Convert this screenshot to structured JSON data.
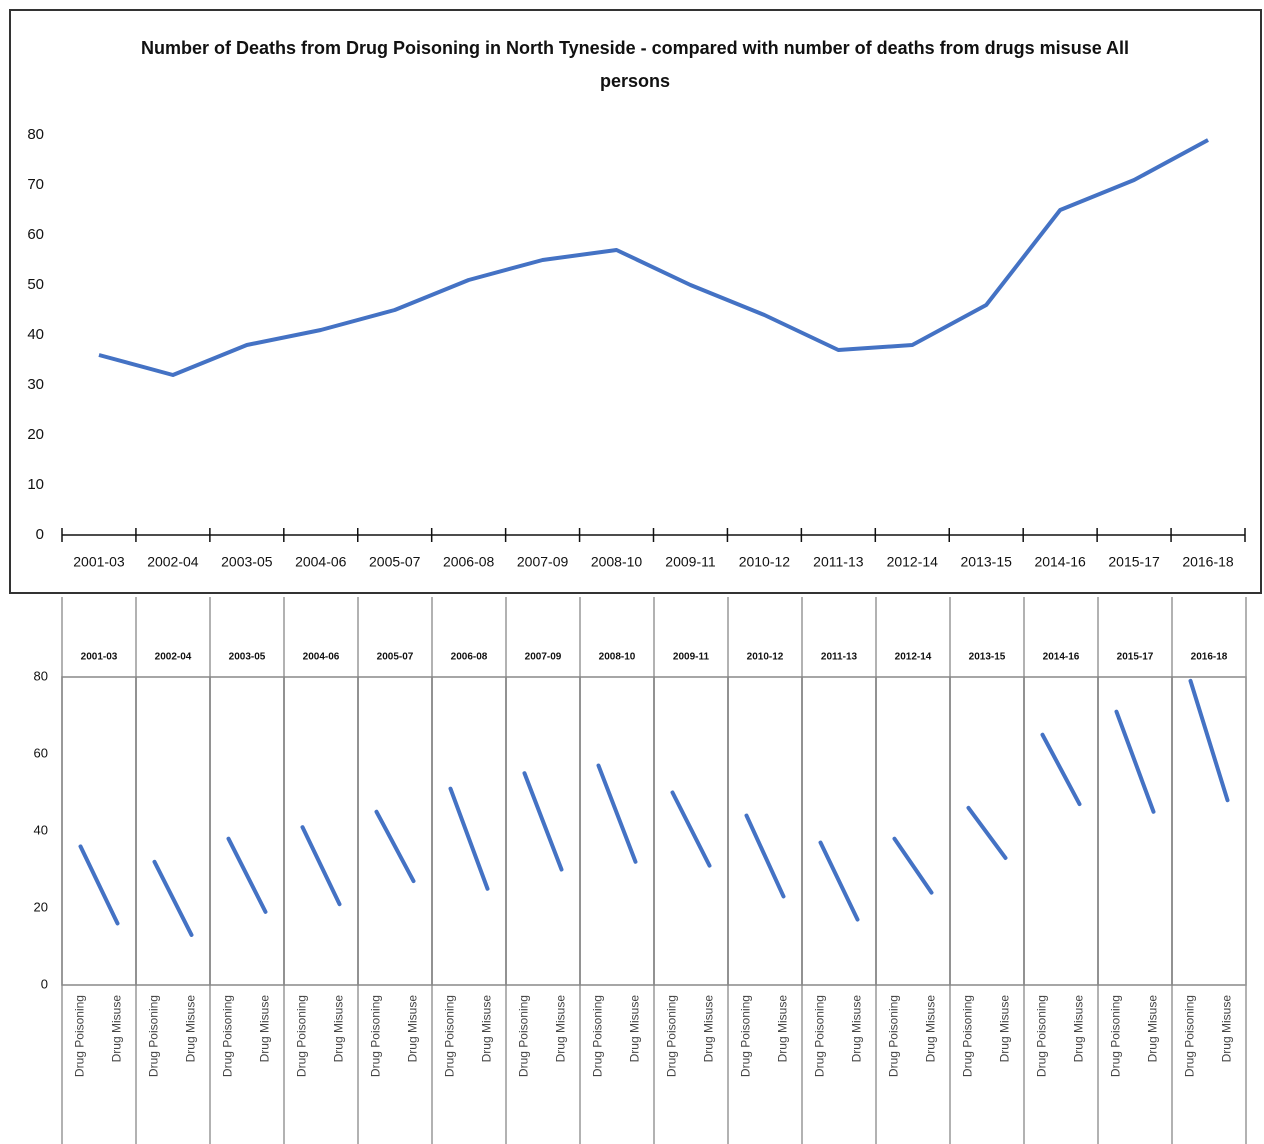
{
  "chart_data": [
    {
      "type": "line",
      "title": "Number of Deaths from Drug Poisoning in North Tyneside - compared with number of deaths from drugs misuse All persons",
      "categories": [
        "2001-03",
        "2002-04",
        "2003-05",
        "2004-06",
        "2005-07",
        "2006-08",
        "2007-09",
        "2008-10",
        "2009-11",
        "2010-12",
        "2011-13",
        "2012-14",
        "2013-15",
        "2014-16",
        "2015-17",
        "2016-18"
      ],
      "values": [
        36,
        32,
        38,
        41,
        45,
        51,
        55,
        57,
        50,
        44,
        37,
        38,
        46,
        65,
        71,
        79
      ],
      "color": "#4472c4",
      "ylim": [
        0,
        80
      ],
      "yticks": [
        0,
        10,
        20,
        30,
        40,
        50,
        60,
        70,
        80
      ]
    },
    {
      "type": "panel-line",
      "categories": [
        "Drug Poisoning",
        "Drug Misuse"
      ],
      "panels": [
        {
          "title": "2001-03",
          "values": [
            36,
            16
          ]
        },
        {
          "title": "2002-04",
          "values": [
            32,
            13
          ]
        },
        {
          "title": "2003-05",
          "values": [
            38,
            19
          ]
        },
        {
          "title": "2004-06",
          "values": [
            41,
            21
          ]
        },
        {
          "title": "2005-07",
          "values": [
            45,
            27
          ]
        },
        {
          "title": "2006-08",
          "values": [
            51,
            25
          ]
        },
        {
          "title": "2007-09",
          "values": [
            55,
            30
          ]
        },
        {
          "title": "2008-10",
          "values": [
            57,
            32
          ]
        },
        {
          "title": "2009-11",
          "values": [
            50,
            31
          ]
        },
        {
          "title": "2010-12",
          "values": [
            44,
            23
          ]
        },
        {
          "title": "2011-13",
          "values": [
            37,
            17
          ]
        },
        {
          "title": "2012-14",
          "values": [
            38,
            24
          ]
        },
        {
          "title": "2013-15",
          "values": [
            46,
            33
          ]
        },
        {
          "title": "2014-16",
          "values": [
            65,
            47
          ]
        },
        {
          "title": "2015-17",
          "values": [
            71,
            45
          ]
        },
        {
          "title": "2016-18",
          "values": [
            79,
            48
          ]
        }
      ],
      "color": "#4472c4",
      "ylim": [
        0,
        80
      ],
      "yticks": [
        0,
        20,
        40,
        60,
        80
      ]
    }
  ]
}
